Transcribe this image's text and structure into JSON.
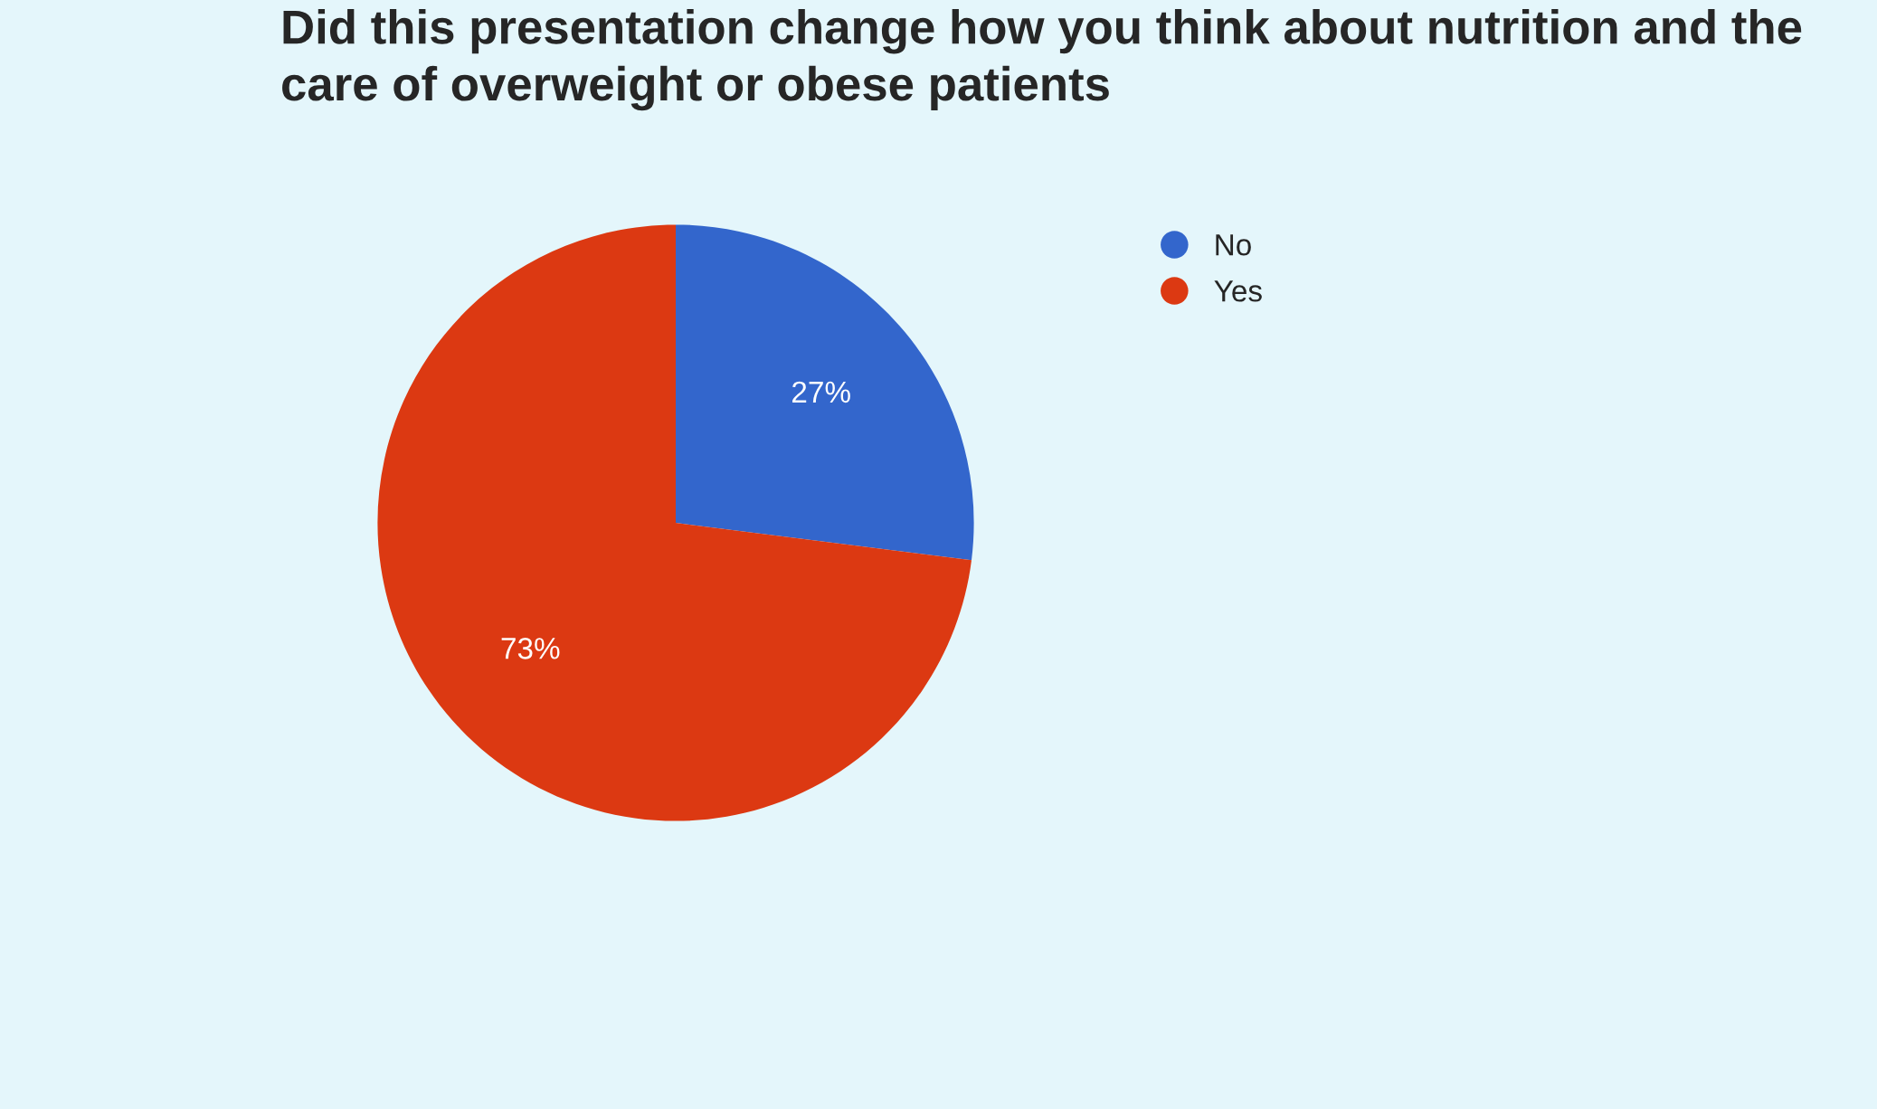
{
  "chart_data": {
    "type": "pie",
    "title": "Did this presentation change how you think about nutrition and the care of overweight or obese patients",
    "categories": [
      "No",
      "Yes"
    ],
    "values": [
      27,
      73
    ],
    "colors": [
      "#3366cc",
      "#dc3912"
    ],
    "value_labels": [
      "27%",
      "73%"
    ],
    "legend": "top right"
  }
}
